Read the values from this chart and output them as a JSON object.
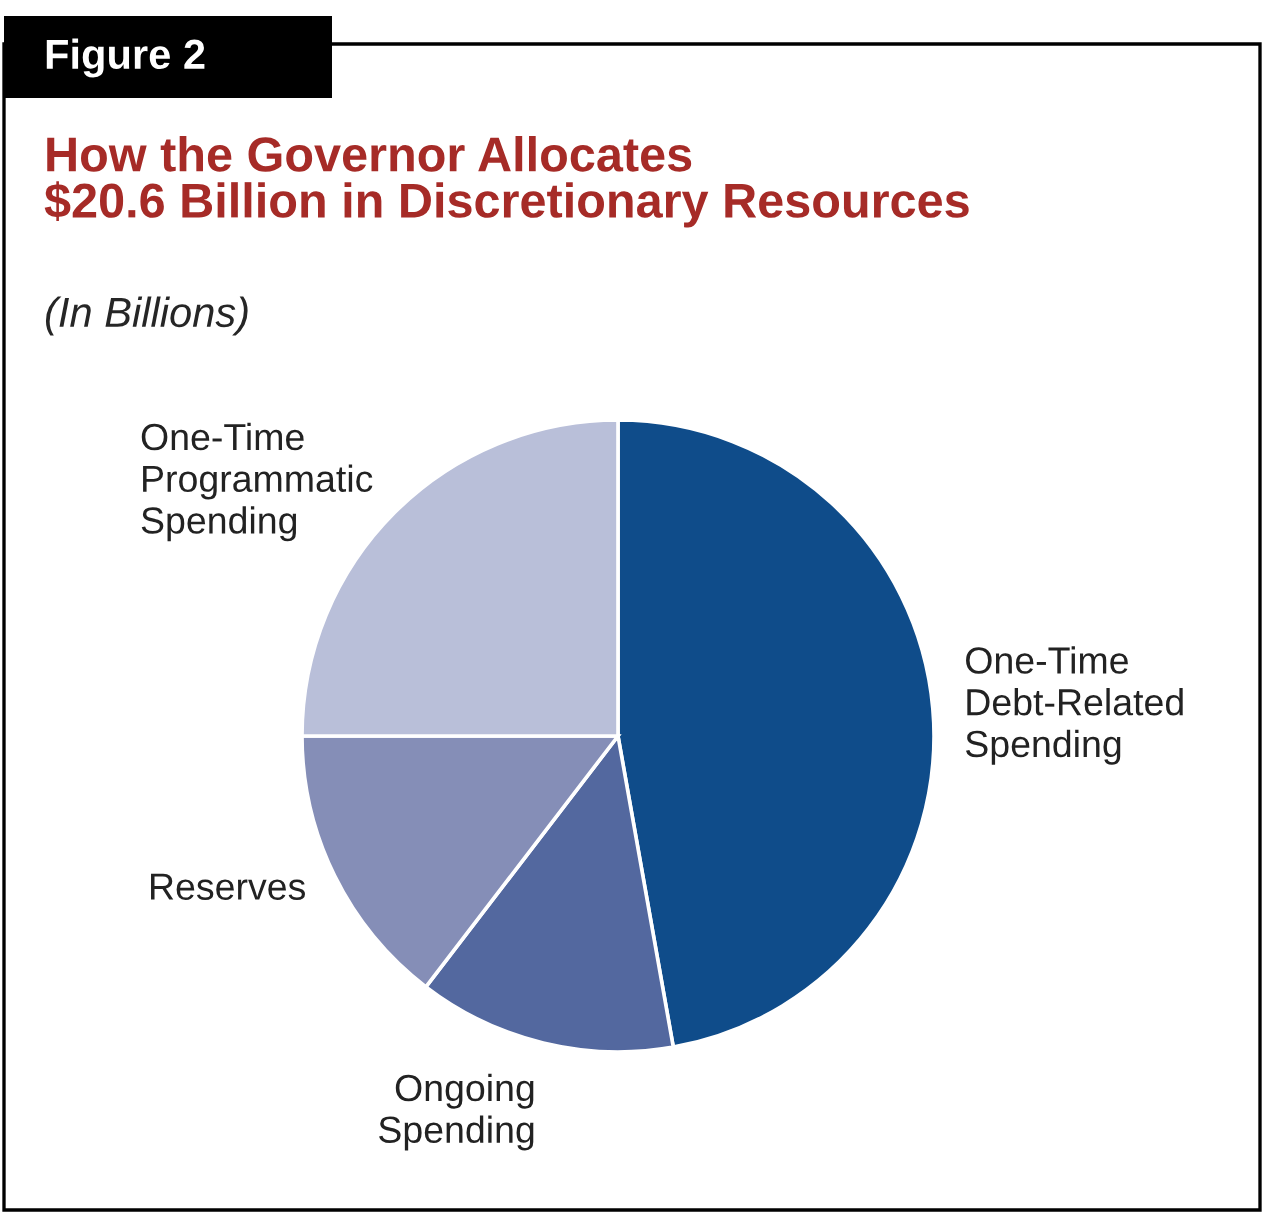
{
  "chart_data": {
    "type": "pie",
    "title": "How the Governor Allocates\n$20.6 Billion in Discretionary Resources",
    "subtitle": "(In Billions)",
    "annotations": [
      "Figure 2"
    ],
    "categories": [
      "One-Time\nDebt-Related\nSpending",
      "Ongoing\nSpending",
      "Reserves",
      "One-Time\nProgrammatic\nSpending"
    ],
    "values": [
      47.2,
      13.2,
      14.6,
      25.0
    ],
    "colors": [
      "#0f4c8a",
      "#53689f",
      "#858eb7",
      "#b9bfd9"
    ],
    "legend": false
  }
}
